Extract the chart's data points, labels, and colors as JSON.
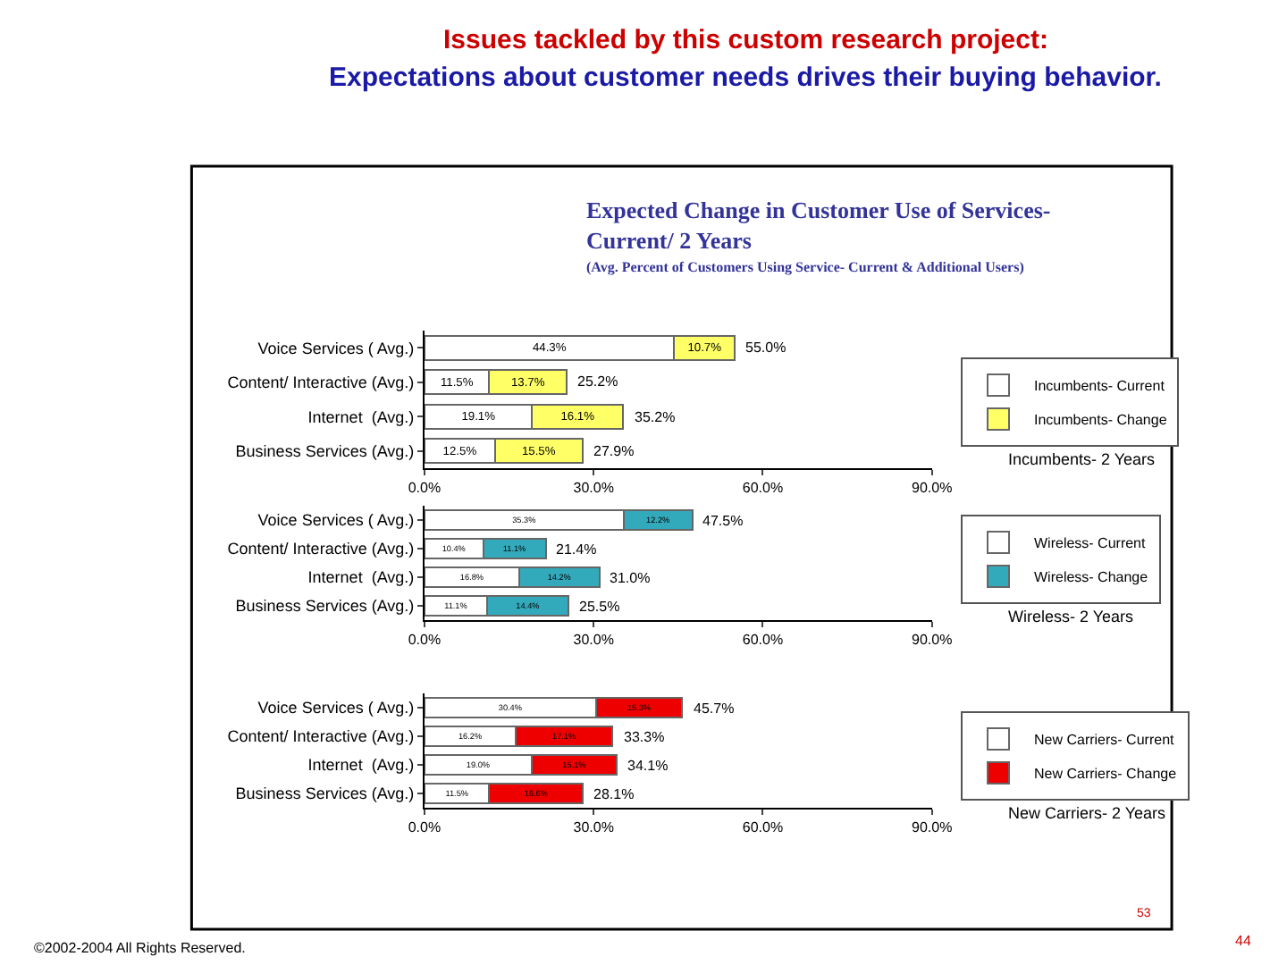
{
  "chart_data": [
    {
      "type": "bar",
      "orientation": "horizontal",
      "stacked": true,
      "title": "Issues tackled by this custom research project:\nExpectations about customer needs drives their buying behavior.",
      "subtitle": "Expected Change in Customer Use of Services-\nCurrent/ 2 Years",
      "categories": [
        "Voice Services ( Avg.)",
        "Content/ Interactive (Avg.)",
        "Internet  (Avg.)",
        "Business Services (Avg.)"
      ],
      "series": [
        {
          "name": "Incumbents- Current",
          "color": "#ffffff",
          "values": [
            44.3,
            11.5,
            19.1,
            12.5
          ],
          "value_labels": [
            "44.3%",
            "11.5%",
            "19.1%",
            "12.5%"
          ]
        },
        {
          "name": "Incumbents- Change",
          "color": "#ffff66",
          "values": [
            10.7,
            13.7,
            16.1,
            15.5
          ],
          "value_labels": [
            "10.7%",
            "13.7%",
            "16.1%",
            "15.5%"
          ]
        }
      ],
      "totals": [
        "55.0%",
        "25.2%",
        "35.2%",
        "27.9%"
      ],
      "xlim": [
        0,
        90
      ],
      "xticks": [
        {
          "value": 0,
          "label": "0.0%"
        },
        {
          "value": 30,
          "label": "30.0%"
        },
        {
          "value": 60,
          "label": "60.0%"
        },
        {
          "value": 90,
          "label": "90.0%"
        }
      ],
      "legend": "right",
      "annotations": [
        "Incumbents- 2 Years",
        "(Avg. Percent of Customers Using Service- Current & Additional Users)"
      ]
    },
    {
      "type": "bar",
      "orientation": "horizontal",
      "stacked": true,
      "categories": [
        "Voice Services ( Avg.)",
        "Content/ Interactive (Avg.)",
        "Internet  (Avg.)",
        "Business Services (Avg.)"
      ],
      "series": [
        {
          "name": "Wireless- Current",
          "color": "#ffffff",
          "values": [
            35.3,
            10.4,
            16.8,
            11.1
          ],
          "value_labels": [
            "35.3%",
            "10.4%",
            "16.8%",
            "11.1%"
          ]
        },
        {
          "name": "Wireless- Change",
          "color": "#33aabb",
          "values": [
            12.2,
            11.1,
            14.2,
            14.4
          ],
          "value_labels": [
            "12.2%",
            "11.1%",
            "14.2%",
            "14.4%"
          ]
        }
      ],
      "totals": [
        "47.5%",
        "21.4%",
        "31.0%",
        "25.5%"
      ],
      "xlim": [
        0,
        90
      ],
      "xticks": [
        {
          "value": 0,
          "label": "0.0%"
        },
        {
          "value": 30,
          "label": "30.0%"
        },
        {
          "value": 60,
          "label": "60.0%"
        },
        {
          "value": 90,
          "label": "90.0%"
        }
      ],
      "legend": "right",
      "annotations": [
        "Wireless- 2 Years"
      ]
    },
    {
      "type": "bar",
      "orientation": "horizontal",
      "stacked": true,
      "categories": [
        "Voice Services ( Avg.)",
        "Content/ Interactive (Avg.)",
        "Internet  (Avg.)",
        "Business Services (Avg.)"
      ],
      "series": [
        {
          "name": "New Carriers- Current",
          "color": "#ffffff",
          "values": [
            30.4,
            16.2,
            19.0,
            11.5
          ],
          "value_labels": [
            "30.4%",
            "16.2%",
            "19.0%",
            "11.5%"
          ]
        },
        {
          "name": "New Carriers- Change",
          "color": "#ee0000",
          "values": [
            15.3,
            17.1,
            15.1,
            16.6
          ],
          "value_labels": [
            "15.3%",
            "17.1%",
            "15.1%",
            "16.6%"
          ]
        }
      ],
      "totals": [
        "45.7%",
        "33.3%",
        "34.1%",
        "28.1%"
      ],
      "xlim": [
        0,
        90
      ],
      "xticks": [
        {
          "value": 0,
          "label": "0.0%"
        },
        {
          "value": 30,
          "label": "30.0%"
        },
        {
          "value": 60,
          "label": "60.0%"
        },
        {
          "value": 90,
          "label": "90.0%"
        }
      ],
      "legend": "right",
      "annotations": [
        "New Carriers- 2 Years",
        "©2002-2004 All Rights Reserved.",
        "53",
        "44"
      ]
    }
  ]
}
